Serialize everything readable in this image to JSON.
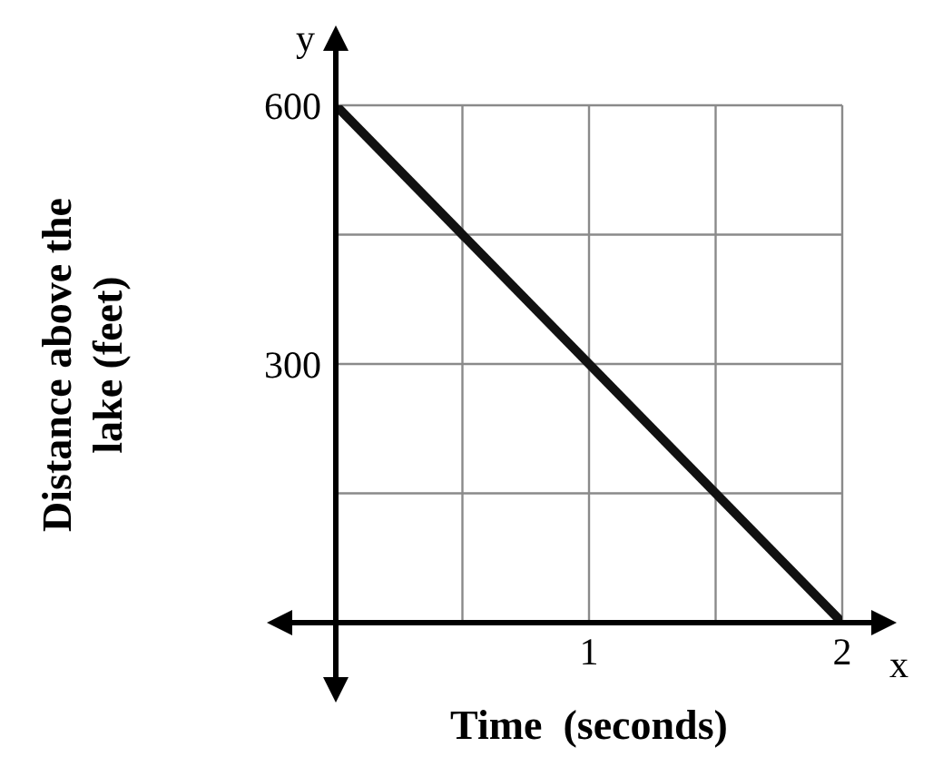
{
  "chart_data": {
    "type": "line",
    "xlabel": "Time  (seconds)",
    "ylabel": "Distance above the lake (feet)",
    "annotations": [
      "x",
      "y"
    ],
    "x": [
      0,
      2
    ],
    "series": [
      {
        "color": "#111111",
        "values": [
          600,
          0
        ]
      }
    ],
    "xlim": [
      0,
      2
    ],
    "ylim": [
      0,
      600
    ],
    "xticks": [
      {
        "value": 0,
        "label": null
      },
      {
        "value": 0.5,
        "label": null
      },
      1,
      {
        "value": 1.5,
        "label": null
      },
      2
    ],
    "yticks": [
      {
        "value": 0,
        "label": null
      },
      {
        "value": 150,
        "label": null
      },
      300,
      {
        "value": 450,
        "label": null
      },
      600
    ],
    "grid": true,
    "marker": "none",
    "line_style": "solid",
    "legend": false
  }
}
